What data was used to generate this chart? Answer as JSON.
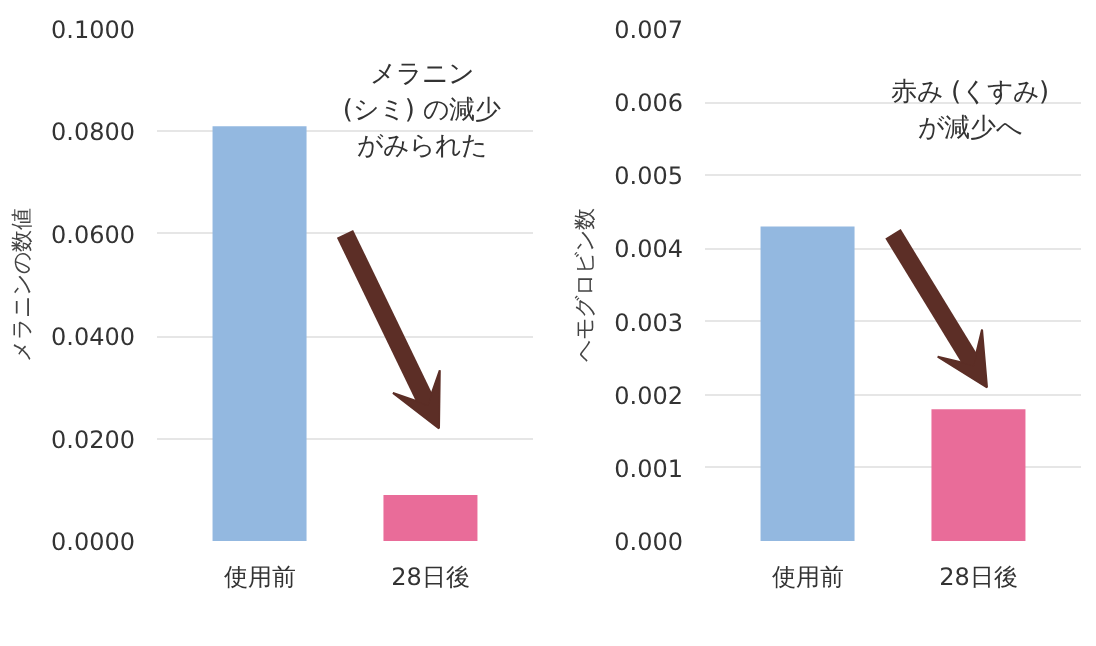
{
  "chart_data": [
    {
      "type": "bar",
      "categories": [
        "使用前",
        "28日後"
      ],
      "values": [
        0.081,
        0.009
      ],
      "colors": [
        "#93b8e0",
        "#e96c99"
      ],
      "ylabel": "メラニンの数値",
      "ylim": [
        0,
        0.1
      ],
      "yticks": [
        {
          "value": 0,
          "label": "0.0000"
        },
        {
          "value": 0.02,
          "label": "0.0200"
        },
        {
          "value": 0.04,
          "label": "0.0400"
        },
        {
          "value": 0.06,
          "label": "0.0600"
        },
        {
          "value": 0.08,
          "label": "0.0800"
        },
        {
          "value": 0.1,
          "label": "0.1000"
        }
      ],
      "grid": "y",
      "annotations": [
        "メラニン",
        "(シミ) の減少",
        "がみられた"
      ]
    },
    {
      "type": "bar",
      "categories": [
        "使用前",
        "28日後"
      ],
      "values": [
        0.0043,
        0.0018
      ],
      "colors": [
        "#93b8e0",
        "#e96c99"
      ],
      "ylabel": "ヘモグロビン数",
      "ylim": [
        0,
        0.007
      ],
      "yticks": [
        {
          "value": 0,
          "label": "0.000"
        },
        {
          "value": 0.001,
          "label": "0.001"
        },
        {
          "value": 0.002,
          "label": "0.002"
        },
        {
          "value": 0.003,
          "label": "0.003"
        },
        {
          "value": 0.004,
          "label": "0.004"
        },
        {
          "value": 0.005,
          "label": "0.005"
        },
        {
          "value": 0.006,
          "label": "0.006"
        },
        {
          "value": 0.007,
          "label": "0.007"
        }
      ],
      "grid": "y",
      "annotations": [
        "赤み (くすみ)",
        "が減少へ"
      ]
    }
  ]
}
